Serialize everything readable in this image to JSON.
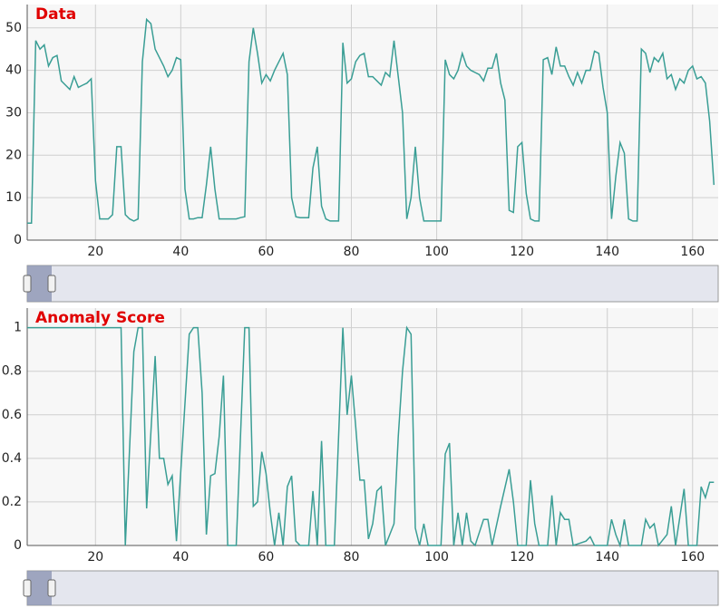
{
  "chart_data": [
    {
      "type": "line",
      "title": "Data",
      "color": "#3a9e95",
      "grid": true,
      "xlim": [
        4,
        166
      ],
      "xticks": [
        20,
        40,
        60,
        80,
        100,
        120,
        140,
        160
      ],
      "ylim": [
        0,
        55.5
      ],
      "yticks": [
        0,
        10,
        20,
        30,
        40,
        50
      ],
      "x": [
        4,
        5,
        6,
        7,
        8,
        9,
        10,
        11,
        12,
        13,
        14,
        15,
        16,
        17,
        18,
        19,
        20,
        21,
        22,
        23,
        24,
        25,
        26,
        27,
        28,
        29,
        30,
        31,
        32,
        33,
        34,
        35,
        36,
        37,
        38,
        39,
        40,
        41,
        42,
        43,
        44,
        45,
        46,
        47,
        48,
        49,
        50,
        51,
        52,
        53,
        54,
        55,
        56,
        57,
        58,
        59,
        60,
        61,
        62,
        63,
        64,
        65,
        66,
        67,
        68,
        69,
        70,
        71,
        72,
        73,
        74,
        75,
        76,
        77,
        78,
        79,
        80,
        81,
        82,
        83,
        84,
        85,
        86,
        87,
        88,
        89,
        90,
        91,
        92,
        93,
        94,
        95,
        96,
        97,
        98,
        99,
        100,
        101,
        102,
        103,
        104,
        105,
        106,
        107,
        108,
        109,
        110,
        111,
        112,
        113,
        114,
        115,
        116,
        117,
        118,
        119,
        120,
        121,
        122,
        123,
        124,
        125,
        126,
        127,
        128,
        129,
        130,
        131,
        132,
        133,
        134,
        135,
        136,
        137,
        138,
        139,
        140,
        141,
        142,
        143,
        144,
        145,
        146,
        147,
        148,
        149,
        150,
        151,
        152,
        153,
        154,
        155,
        156,
        157,
        158,
        159,
        160,
        161,
        162,
        163,
        164,
        165
      ],
      "values": [
        4,
        4,
        47,
        45,
        46,
        41,
        43,
        43.5,
        37.5,
        36.5,
        35.5,
        38.5,
        36,
        36.5,
        37,
        38,
        14,
        5,
        5,
        5,
        6,
        22,
        22,
        6,
        5,
        4.5,
        5,
        42,
        52,
        51,
        45,
        43,
        41,
        38.5,
        40,
        43,
        42.5,
        12,
        5,
        5,
        5.3,
        5.3,
        13,
        22,
        12,
        5,
        5,
        5,
        5,
        5,
        5.3,
        5.5,
        42,
        50,
        44,
        37,
        39,
        37.5,
        40,
        42,
        44,
        39,
        10,
        5.5,
        5.3,
        5.3,
        5.3,
        17,
        22,
        8,
        5,
        4.5,
        4.5,
        4.5,
        46.5,
        37,
        38,
        42,
        43.5,
        44,
        38.5,
        38.5,
        37.5,
        36.5,
        39.5,
        38.5,
        47,
        38.5,
        30,
        5,
        10,
        22,
        10,
        4.5,
        4.5,
        4.5,
        4.5,
        4.5,
        42.5,
        39,
        38,
        40,
        44,
        41,
        40,
        39.5,
        39,
        37.5,
        40.5,
        40.5,
        44,
        37,
        33,
        7,
        6.5,
        22,
        23,
        11,
        5,
        4.5,
        4.5,
        42.5,
        43,
        39,
        45.5,
        41,
        41,
        38.5,
        36.5,
        39.5,
        37,
        40,
        40,
        44.5,
        44,
        36,
        30,
        5,
        15,
        23,
        20.5,
        5,
        4.5,
        4.5,
        45,
        44,
        39.5,
        43,
        42,
        44,
        38,
        39,
        35.5,
        38,
        37,
        40,
        41,
        38,
        38.5,
        37,
        28,
        13
      ]
    },
    {
      "type": "line",
      "title": "Anomaly Score",
      "color": "#3a9e95",
      "grid": true,
      "xlim": [
        4,
        166
      ],
      "xticks": [
        20,
        40,
        60,
        80,
        100,
        120,
        140,
        160
      ],
      "ylim": [
        0,
        1.09
      ],
      "yticks": [
        0,
        0.2,
        0.4,
        0.6,
        0.8,
        1
      ],
      "x": [
        4,
        26,
        27,
        29,
        30,
        31,
        32,
        34,
        35,
        36,
        37,
        38,
        39,
        42,
        43,
        44,
        45,
        46,
        47,
        48,
        49,
        50,
        51,
        53,
        55,
        56,
        57,
        58,
        59,
        60,
        61,
        62,
        63,
        64,
        65,
        66,
        67,
        68,
        70,
        71,
        72,
        73,
        74,
        76,
        78,
        79,
        80,
        81,
        82,
        83,
        84,
        85,
        86,
        87,
        88,
        90,
        91,
        92,
        93,
        94,
        95,
        96,
        97,
        98,
        101,
        102,
        103,
        104,
        105,
        106,
        107,
        108,
        109,
        111,
        112,
        113,
        115,
        117,
        118,
        119,
        121,
        122,
        123,
        124,
        126,
        127,
        128,
        129,
        130,
        131,
        132,
        135,
        136,
        137,
        140,
        141,
        142,
        143,
        144,
        145,
        148,
        149,
        150,
        151,
        152,
        154,
        155,
        156,
        158,
        159,
        161,
        162,
        163,
        164,
        165
      ],
      "values": [
        1,
        1,
        0,
        0.89,
        1,
        1,
        0.17,
        0.87,
        0.4,
        0.4,
        0.28,
        0.32,
        0.02,
        0.97,
        1,
        1,
        0.7,
        0.05,
        0.32,
        0.33,
        0.5,
        0.78,
        0,
        0,
        1,
        1,
        0.18,
        0.2,
        0.43,
        0.33,
        0.15,
        0,
        0.15,
        0,
        0.27,
        0.32,
        0.02,
        0,
        0,
        0.25,
        0,
        0.48,
        0,
        0,
        1,
        0.6,
        0.78,
        0.55,
        0.3,
        0.3,
        0.03,
        0.1,
        0.25,
        0.27,
        0,
        0.1,
        0.5,
        0.8,
        1,
        0.97,
        0.08,
        0,
        0.1,
        0,
        0,
        0.42,
        0.47,
        0,
        0.15,
        0,
        0.15,
        0.02,
        0,
        0.12,
        0.12,
        0,
        0.18,
        0.35,
        0.2,
        0,
        0,
        0.3,
        0.1,
        0,
        0,
        0.23,
        0,
        0.15,
        0.12,
        0.12,
        0,
        0.02,
        0.04,
        0,
        0,
        0.12,
        0.05,
        0,
        0.12,
        0,
        0,
        0.12,
        0.08,
        0.1,
        0,
        0.05,
        0.18,
        0,
        0.26,
        0,
        0,
        0.27,
        0.22,
        0.29,
        0.29
      ]
    }
  ]
}
